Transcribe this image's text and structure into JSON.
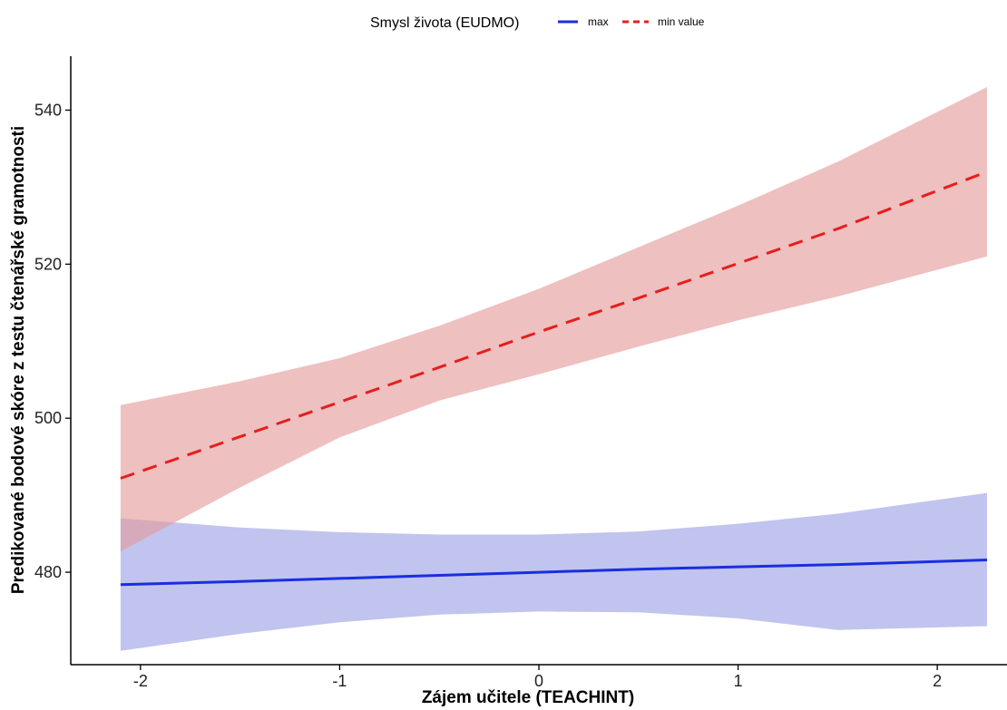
{
  "chart_data": {
    "type": "line",
    "xlabel": "Zájem učitele (TEACHINT)",
    "ylabel": "Predikované bodové skóre z testu čtenářské gramotnosti",
    "xlim": [
      -2.35,
      2.35
    ],
    "ylim": [
      468,
      547
    ],
    "x_ticks": [
      -2,
      -1,
      0,
      1,
      2
    ],
    "x_tick_labels": [
      "-2",
      "-1",
      "0",
      "1",
      "2"
    ],
    "y_ticks": [
      480,
      500,
      520,
      540
    ],
    "y_tick_labels": [
      "480",
      "500",
      "520",
      "540"
    ],
    "grid": false,
    "legend": {
      "title": "Smysl života (EUDMO)",
      "position": "top"
    },
    "x": [
      -2.1,
      -1.5,
      -1.0,
      -0.5,
      0.0,
      0.5,
      1.0,
      1.5,
      2.25
    ],
    "series": [
      {
        "name": "max",
        "color": "#1a2ee0",
        "ribbon_color": "#8e93e0",
        "line_style": "solid",
        "values": [
          478.4,
          478.8,
          479.2,
          479.6,
          480.0,
          480.4,
          480.7,
          481.0,
          481.6
        ],
        "lower": [
          469.8,
          472.0,
          473.5,
          474.5,
          474.9,
          474.8,
          474.0,
          472.5,
          473.0
        ],
        "upper": [
          487.0,
          485.8,
          485.2,
          484.9,
          484.9,
          485.3,
          486.3,
          487.6,
          490.3
        ]
      },
      {
        "name": "min value",
        "color": "#e61e1e",
        "ribbon_color": "#e39a9a",
        "line_style": "dashed",
        "values": [
          492.2,
          497.6,
          502.1,
          506.6,
          511.2,
          515.6,
          520.1,
          524.6,
          532.0
        ],
        "lower": [
          482.7,
          491.0,
          497.5,
          502.3,
          505.7,
          509.3,
          512.7,
          515.8,
          521.0
        ],
        "upper": [
          501.7,
          504.8,
          507.8,
          512.0,
          516.8,
          522.2,
          527.6,
          533.3,
          543.0
        ]
      }
    ]
  }
}
